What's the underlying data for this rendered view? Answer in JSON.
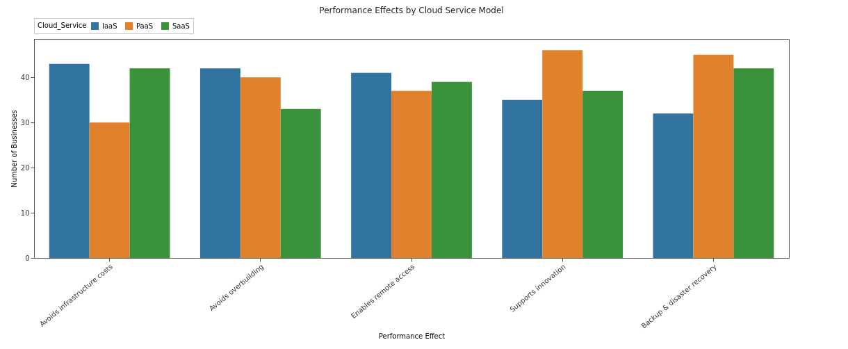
{
  "chart_data": {
    "type": "bar",
    "title": "Performance Effects by Cloud Service Model",
    "xlabel": "Performance Effect",
    "ylabel": "Number of Businesses",
    "legend_title": "Cloud_Service",
    "categories": [
      "Avoids infrastructure costs",
      "Avoids overbuilding",
      "Enables remote access",
      "Supports innovation",
      "Backup & disaster recovery"
    ],
    "series": [
      {
        "name": "IaaS",
        "color": "#3274a1",
        "values": [
          43,
          42,
          41,
          35,
          32
        ]
      },
      {
        "name": "PaaS",
        "color": "#e1812c",
        "values": [
          30,
          40,
          37,
          46,
          45
        ]
      },
      {
        "name": "SaaS",
        "color": "#3a923a",
        "values": [
          42,
          33,
          39,
          37,
          42
        ]
      }
    ],
    "ylim": [
      0,
      48.5
    ],
    "yticks": [
      0,
      10,
      20,
      30,
      40
    ],
    "grid": false,
    "legend": "top left"
  }
}
